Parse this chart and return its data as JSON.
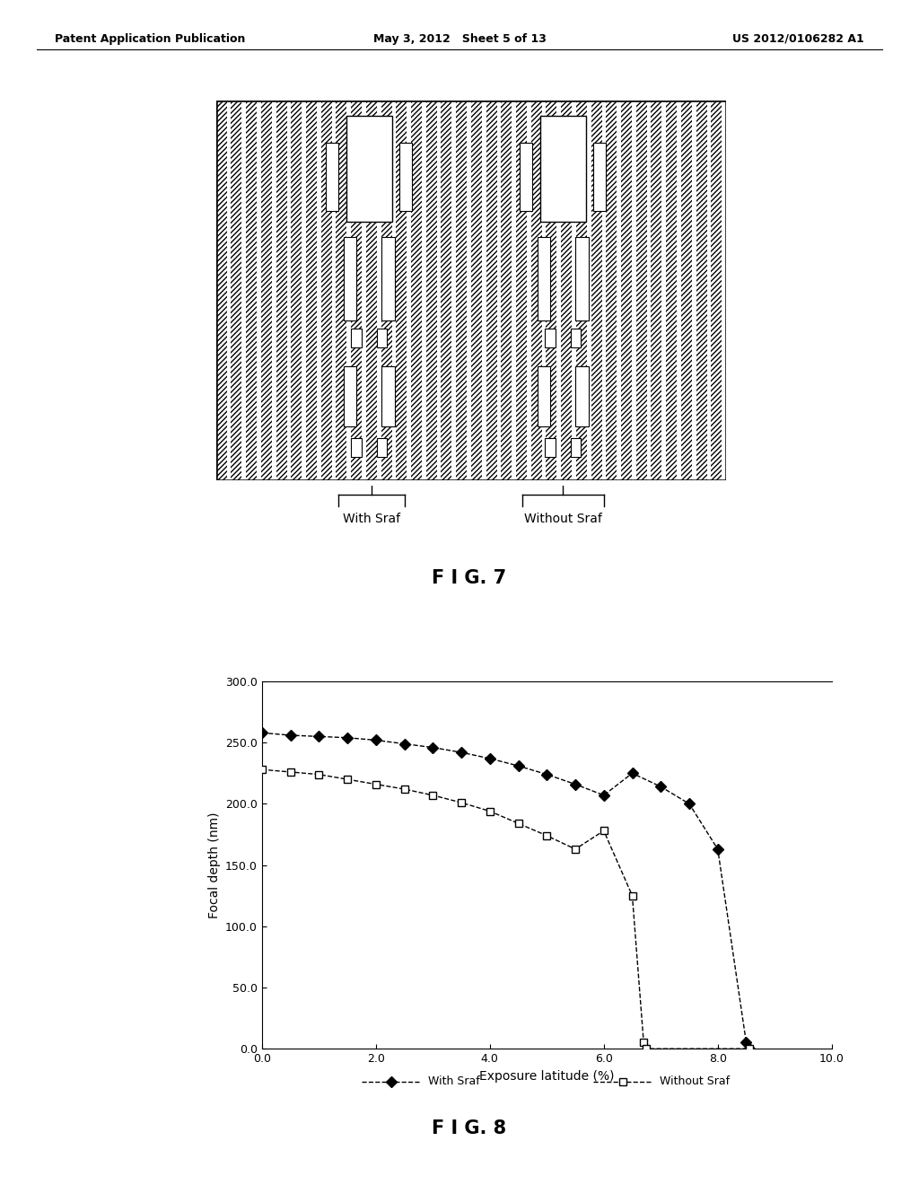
{
  "header_left": "Patent Application Publication",
  "header_mid": "May 3, 2012   Sheet 5 of 13",
  "header_right": "US 2012/0106282 A1",
  "fig7_label": "F I G. 7",
  "fig8_label": "F I G. 8",
  "label_with_sraf": "With Sraf",
  "label_without_sraf": "Without Sraf",
  "xlabel": "Exposure latitude (%)",
  "ylabel": "Focal depth (nm)",
  "xlim": [
    0.0,
    10.0
  ],
  "ylim": [
    0.0,
    300.0
  ],
  "xticks": [
    0.0,
    2.0,
    4.0,
    6.0,
    8.0,
    10.0
  ],
  "yticks": [
    0.0,
    50.0,
    100.0,
    150.0,
    200.0,
    250.0,
    300.0
  ],
  "with_sraf_x": [
    0.0,
    0.5,
    1.0,
    1.5,
    2.0,
    2.5,
    3.0,
    3.5,
    4.0,
    4.5,
    5.0,
    5.5,
    6.0,
    6.5,
    7.0,
    7.5,
    8.0,
    8.5,
    8.55
  ],
  "with_sraf_y": [
    258,
    256,
    255,
    254,
    252,
    249,
    246,
    242,
    237,
    231,
    224,
    216,
    207,
    225,
    214,
    200,
    163,
    5,
    0
  ],
  "without_sraf_x": [
    0.0,
    0.5,
    1.0,
    1.5,
    2.0,
    2.5,
    3.0,
    3.5,
    4.0,
    4.5,
    5.0,
    5.5,
    6.0,
    6.5,
    6.7,
    6.75,
    8.55
  ],
  "without_sraf_y": [
    228,
    226,
    224,
    220,
    216,
    212,
    207,
    201,
    194,
    184,
    174,
    163,
    178,
    125,
    5,
    0,
    0
  ],
  "bg_color": "#ffffff",
  "legend_with": "With Sraf",
  "legend_without": "Without Sraf"
}
